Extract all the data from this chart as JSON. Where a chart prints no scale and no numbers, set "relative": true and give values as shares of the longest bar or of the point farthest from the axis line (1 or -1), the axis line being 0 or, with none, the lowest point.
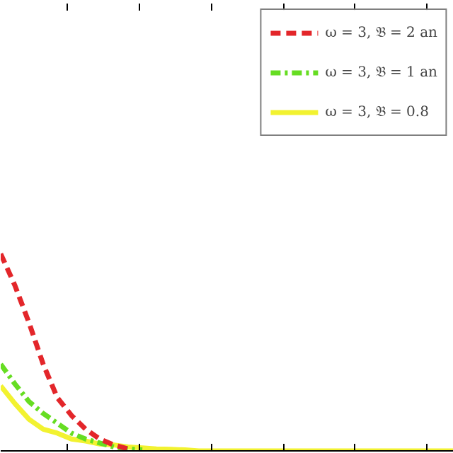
{
  "chart_data": {
    "type": "line",
    "relative": true,
    "categories": [
      null,
      null,
      null,
      null,
      null,
      null,
      null,
      null,
      null,
      null,
      null,
      null,
      null,
      null,
      null,
      null,
      null,
      null,
      null,
      null,
      null,
      null,
      null,
      null,
      null,
      null,
      null,
      null,
      null,
      null,
      null,
      null,
      null
    ],
    "series": [
      {
        "name": "ω = 3, 𝔅 = 2 an",
        "color": "#e3262a",
        "line_style": "dashed",
        "values": [
          1,
          0.84,
          0.65,
          0.44,
          0.27,
          0.18,
          0.11,
          0.06,
          0.03,
          0.01,
          null,
          null,
          null,
          null,
          null,
          null,
          null,
          null,
          null,
          null,
          null,
          null,
          null,
          null,
          null,
          null,
          null,
          null,
          null,
          null,
          null,
          null,
          null
        ]
      },
      {
        "name": "ω = 3, 𝔅 = 1 an",
        "color": "#66dd22",
        "line_style": "dashdot",
        "values": [
          0.44,
          0.34,
          0.25,
          0.19,
          0.14,
          0.09,
          0.06,
          0.04,
          0.02,
          0.01,
          0.005,
          null,
          null,
          null,
          null,
          null,
          null,
          null,
          null,
          null,
          null,
          null,
          null,
          null,
          null,
          null,
          null,
          null,
          null,
          null,
          null,
          null,
          null
        ]
      },
      {
        "name": "ω = 3, 𝔅 = 0.8",
        "color": "#f2f230",
        "line_style": "solid",
        "values": [
          0.33,
          0.24,
          0.16,
          0.11,
          0.09,
          0.06,
          0.05,
          0.035,
          0.03,
          0.02,
          0.015,
          0.01,
          0.008,
          0.005,
          0,
          0,
          0,
          0,
          0,
          0,
          0,
          0,
          0,
          0,
          0,
          0,
          0,
          0,
          0,
          0,
          0,
          0,
          0
        ]
      }
    ],
    "grid": false,
    "legend": "top right"
  }
}
